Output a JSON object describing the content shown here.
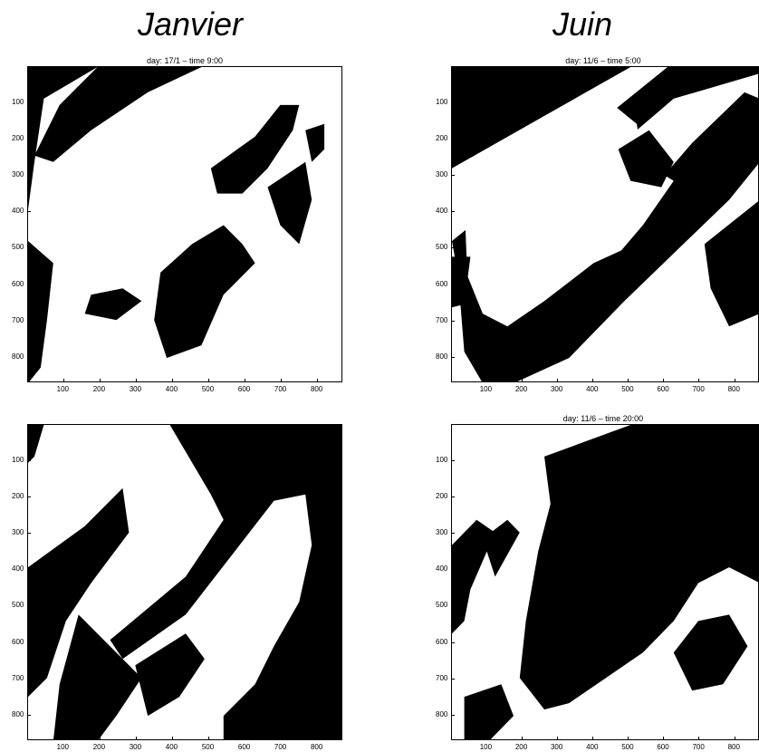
{
  "column_titles": [
    "Janvier",
    "Juin"
  ],
  "chart_data": [
    {
      "type": "heatmap",
      "title": "day: 17/1 – time 9:00",
      "xticks": [
        100,
        200,
        300,
        400,
        500,
        600,
        700,
        800
      ],
      "yticks": [
        100,
        200,
        300,
        400,
        500,
        600,
        700,
        800
      ],
      "xlim": [
        1,
        870
      ],
      "ylim": [
        1,
        870
      ],
      "colormap": [
        "#000000",
        "#ffffff"
      ]
    },
    {
      "type": "heatmap",
      "title": "day: 11/6 – time 5:00",
      "xticks": [
        100,
        200,
        300,
        400,
        500,
        600,
        700,
        800
      ],
      "yticks": [
        100,
        200,
        300,
        400,
        500,
        600,
        700,
        800
      ],
      "xlim": [
        1,
        870
      ],
      "ylim": [
        1,
        870
      ],
      "colormap": [
        "#000000",
        "#ffffff"
      ]
    },
    {
      "type": "heatmap",
      "title": "",
      "xticks": [
        100,
        200,
        300,
        400,
        500,
        600,
        700,
        800
      ],
      "yticks": [
        100,
        200,
        300,
        400,
        500,
        600,
        700,
        800
      ],
      "xlim": [
        1,
        870
      ],
      "ylim": [
        1,
        870
      ],
      "colormap": [
        "#000000",
        "#ffffff"
      ]
    },
    {
      "type": "heatmap",
      "title": "day: 11/6 – time 20:00",
      "xticks": [
        100,
        200,
        300,
        400,
        500,
        600,
        700,
        800
      ],
      "yticks": [
        100,
        200,
        300,
        400,
        500,
        600,
        700,
        800
      ],
      "xlim": [
        1,
        870
      ],
      "ylim": [
        1,
        870
      ],
      "colormap": [
        "#000000",
        "#ffffff"
      ]
    }
  ]
}
